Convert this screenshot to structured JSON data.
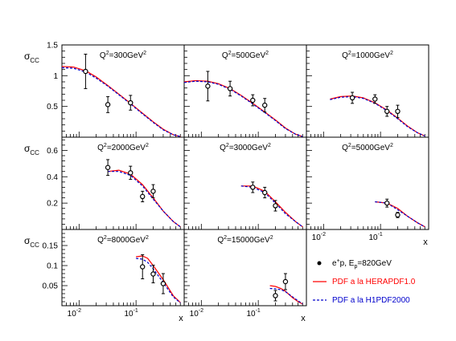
{
  "legend": {
    "data_label": "e",
    "data_label_sup": "+",
    "data_label_rest": "p, E",
    "data_label_sub": "p",
    "data_label_tail": "=820GeV",
    "herapdf_label": "PDF a la HERAPDF1.0",
    "h1pdf_label": "PDF a la H1PDF2000"
  },
  "colors": {
    "herapdf": "#ff0000",
    "h1pdf": "#0000cc",
    "h1pdf_text": "#0000cc",
    "data": "#000000",
    "frame": "#000000"
  },
  "axes": {
    "x_label": "x",
    "y_label_main": "σ",
    "y_label_sub": "CC",
    "x_scale": "log",
    "x_range": [
      0.005,
      0.7
    ],
    "x_tick_labels": [
      {
        "base": "10",
        "exp": "-2"
      },
      {
        "base": "10",
        "exp": "-1"
      }
    ],
    "row_y_ranges": [
      [
        0,
        1.5
      ],
      [
        0,
        0.7
      ],
      [
        0,
        0.19
      ]
    ],
    "row_y_tick_labels": [
      [
        "0.5",
        "1",
        "1.5"
      ],
      [
        "0.2",
        "0.4",
        "0.6"
      ],
      [
        "0.05",
        "0.1",
        "0.15"
      ]
    ]
  },
  "chart_data": {
    "type": "scatter",
    "panels": [
      {
        "q2_label": "Q",
        "q2_value": "=300GeV",
        "row": 0,
        "col": 0,
        "points": [
          {
            "x": 0.013,
            "y": 1.07,
            "err": 0.28
          },
          {
            "x": 0.032,
            "y": 0.53,
            "err": 0.13
          },
          {
            "x": 0.08,
            "y": 0.56,
            "err": 0.12
          }
        ],
        "herapdf": [
          [
            0.005,
            1.15
          ],
          [
            0.008,
            1.14
          ],
          [
            0.013,
            1.08
          ],
          [
            0.02,
            0.98
          ],
          [
            0.032,
            0.84
          ],
          [
            0.05,
            0.7
          ],
          [
            0.08,
            0.55
          ],
          [
            0.13,
            0.39
          ],
          [
            0.2,
            0.25
          ],
          [
            0.3,
            0.13
          ],
          [
            0.45,
            0.04
          ],
          [
            0.6,
            0.01
          ]
        ],
        "h1pdf": [
          [
            0.005,
            1.13
          ],
          [
            0.008,
            1.12
          ],
          [
            0.013,
            1.06
          ],
          [
            0.02,
            0.96
          ],
          [
            0.032,
            0.83
          ],
          [
            0.05,
            0.69
          ],
          [
            0.08,
            0.54
          ],
          [
            0.13,
            0.38
          ],
          [
            0.2,
            0.24
          ],
          [
            0.3,
            0.12
          ],
          [
            0.45,
            0.04
          ],
          [
            0.6,
            0.01
          ]
        ]
      },
      {
        "q2_label": "Q",
        "q2_value": "=500GeV",
        "row": 0,
        "col": 1,
        "points": [
          {
            "x": 0.013,
            "y": 0.83,
            "err": 0.24
          },
          {
            "x": 0.032,
            "y": 0.79,
            "err": 0.12
          },
          {
            "x": 0.08,
            "y": 0.6,
            "err": 0.09
          },
          {
            "x": 0.13,
            "y": 0.52,
            "err": 0.11
          }
        ],
        "herapdf": [
          [
            0.005,
            0.9
          ],
          [
            0.008,
            0.92
          ],
          [
            0.013,
            0.91
          ],
          [
            0.02,
            0.87
          ],
          [
            0.032,
            0.79
          ],
          [
            0.05,
            0.68
          ],
          [
            0.08,
            0.55
          ],
          [
            0.13,
            0.41
          ],
          [
            0.2,
            0.28
          ],
          [
            0.3,
            0.15
          ],
          [
            0.45,
            0.05
          ],
          [
            0.6,
            0.01
          ]
        ],
        "h1pdf": [
          [
            0.005,
            0.89
          ],
          [
            0.008,
            0.91
          ],
          [
            0.013,
            0.9
          ],
          [
            0.02,
            0.86
          ],
          [
            0.032,
            0.78
          ],
          [
            0.05,
            0.67
          ],
          [
            0.08,
            0.54
          ],
          [
            0.13,
            0.4
          ],
          [
            0.2,
            0.27
          ],
          [
            0.3,
            0.14
          ],
          [
            0.45,
            0.05
          ],
          [
            0.6,
            0.01
          ]
        ]
      },
      {
        "q2_label": "Q",
        "q2_value": "=1000GeV",
        "row": 0,
        "col": 2,
        "points": [
          {
            "x": 0.032,
            "y": 0.64,
            "err": 0.09
          },
          {
            "x": 0.08,
            "y": 0.62,
            "err": 0.07
          },
          {
            "x": 0.13,
            "y": 0.42,
            "err": 0.08
          },
          {
            "x": 0.2,
            "y": 0.42,
            "err": 0.1
          }
        ],
        "herapdf": [
          [
            0.013,
            0.62
          ],
          [
            0.02,
            0.66
          ],
          [
            0.032,
            0.67
          ],
          [
            0.05,
            0.64
          ],
          [
            0.08,
            0.56
          ],
          [
            0.13,
            0.44
          ],
          [
            0.2,
            0.31
          ],
          [
            0.3,
            0.18
          ],
          [
            0.45,
            0.07
          ],
          [
            0.6,
            0.02
          ]
        ],
        "h1pdf": [
          [
            0.013,
            0.61
          ],
          [
            0.02,
            0.65
          ],
          [
            0.032,
            0.66
          ],
          [
            0.05,
            0.63
          ],
          [
            0.08,
            0.55
          ],
          [
            0.13,
            0.43
          ],
          [
            0.2,
            0.3
          ],
          [
            0.3,
            0.17
          ],
          [
            0.45,
            0.07
          ],
          [
            0.6,
            0.02
          ]
        ]
      },
      {
        "q2_label": "Q",
        "q2_value": "=2000GeV",
        "row": 1,
        "col": 0,
        "points": [
          {
            "x": 0.032,
            "y": 0.47,
            "err": 0.06
          },
          {
            "x": 0.08,
            "y": 0.43,
            "err": 0.05
          },
          {
            "x": 0.13,
            "y": 0.25,
            "err": 0.04
          },
          {
            "x": 0.2,
            "y": 0.29,
            "err": 0.05
          }
        ],
        "herapdf": [
          [
            0.032,
            0.44
          ],
          [
            0.05,
            0.45
          ],
          [
            0.08,
            0.42
          ],
          [
            0.13,
            0.34
          ],
          [
            0.2,
            0.24
          ],
          [
            0.3,
            0.14
          ],
          [
            0.45,
            0.06
          ],
          [
            0.6,
            0.02
          ]
        ],
        "h1pdf": [
          [
            0.032,
            0.44
          ],
          [
            0.05,
            0.44
          ],
          [
            0.08,
            0.41
          ],
          [
            0.13,
            0.33
          ],
          [
            0.2,
            0.23
          ],
          [
            0.3,
            0.14
          ],
          [
            0.45,
            0.06
          ],
          [
            0.6,
            0.02
          ]
        ]
      },
      {
        "q2_label": "Q",
        "q2_value": "=3000GeV",
        "row": 1,
        "col": 1,
        "points": [
          {
            "x": 0.08,
            "y": 0.32,
            "err": 0.04
          },
          {
            "x": 0.13,
            "y": 0.28,
            "err": 0.04
          },
          {
            "x": 0.2,
            "y": 0.18,
            "err": 0.04
          }
        ],
        "herapdf": [
          [
            0.05,
            0.33
          ],
          [
            0.08,
            0.33
          ],
          [
            0.13,
            0.29
          ],
          [
            0.2,
            0.21
          ],
          [
            0.3,
            0.13
          ],
          [
            0.45,
            0.06
          ],
          [
            0.6,
            0.02
          ]
        ],
        "h1pdf": [
          [
            0.05,
            0.33
          ],
          [
            0.08,
            0.32
          ],
          [
            0.13,
            0.28
          ],
          [
            0.2,
            0.2
          ],
          [
            0.3,
            0.12
          ],
          [
            0.45,
            0.06
          ],
          [
            0.6,
            0.02
          ]
        ]
      },
      {
        "q2_label": "Q",
        "q2_value": "=5000GeV",
        "row": 1,
        "col": 2,
        "points": [
          {
            "x": 0.13,
            "y": 0.2,
            "err": 0.03
          },
          {
            "x": 0.2,
            "y": 0.11,
            "err": 0.02
          }
        ],
        "herapdf": [
          [
            0.08,
            0.21
          ],
          [
            0.13,
            0.2
          ],
          [
            0.2,
            0.16
          ],
          [
            0.3,
            0.1
          ],
          [
            0.45,
            0.05
          ],
          [
            0.6,
            0.02
          ]
        ],
        "h1pdf": [
          [
            0.08,
            0.21
          ],
          [
            0.13,
            0.2
          ],
          [
            0.2,
            0.15
          ],
          [
            0.3,
            0.1
          ],
          [
            0.45,
            0.05
          ],
          [
            0.6,
            0.02
          ]
        ]
      },
      {
        "q2_label": "Q",
        "q2_value": "=8000GeV",
        "row": 2,
        "col": 0,
        "points": [
          {
            "x": 0.13,
            "y": 0.097,
            "err": 0.03
          },
          {
            "x": 0.2,
            "y": 0.079,
            "err": 0.022
          },
          {
            "x": 0.3,
            "y": 0.055,
            "err": 0.025
          }
        ],
        "herapdf": [
          [
            0.1,
            0.122
          ],
          [
            0.13,
            0.124
          ],
          [
            0.16,
            0.118
          ],
          [
            0.2,
            0.1
          ],
          [
            0.3,
            0.065
          ],
          [
            0.45,
            0.025
          ],
          [
            0.6,
            0.008
          ]
        ],
        "h1pdf": [
          [
            0.1,
            0.118
          ],
          [
            0.13,
            0.116
          ],
          [
            0.16,
            0.108
          ],
          [
            0.2,
            0.092
          ],
          [
            0.3,
            0.058
          ],
          [
            0.45,
            0.022
          ],
          [
            0.6,
            0.007
          ]
        ]
      },
      {
        "q2_label": "Q",
        "q2_value": "=15000GeV",
        "row": 2,
        "col": 1,
        "points": [
          {
            "x": 0.2,
            "y": 0.025,
            "err": 0.013
          },
          {
            "x": 0.3,
            "y": 0.06,
            "err": 0.02
          }
        ],
        "herapdf": [
          [
            0.16,
            0.05
          ],
          [
            0.2,
            0.048
          ],
          [
            0.25,
            0.043
          ],
          [
            0.3,
            0.036
          ],
          [
            0.4,
            0.02
          ],
          [
            0.5,
            0.01
          ],
          [
            0.6,
            0.004
          ]
        ],
        "h1pdf": [
          [
            0.16,
            0.043
          ],
          [
            0.2,
            0.042
          ],
          [
            0.25,
            0.04
          ],
          [
            0.3,
            0.035
          ],
          [
            0.4,
            0.022
          ],
          [
            0.5,
            0.012
          ],
          [
            0.6,
            0.005
          ]
        ]
      }
    ]
  }
}
